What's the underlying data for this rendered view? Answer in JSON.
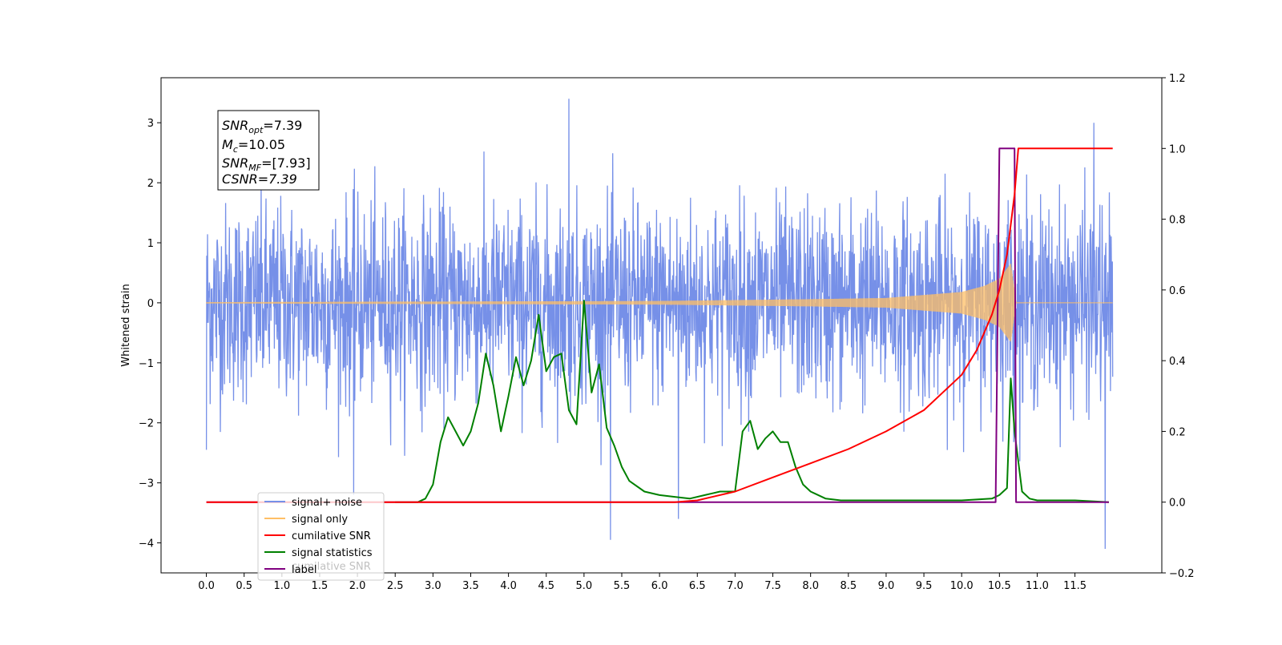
{
  "chart_data": {
    "type": "line",
    "title": "",
    "xlabel": "",
    "ylabel": "Whitened strain",
    "xlim": [
      -0.6,
      12.65
    ],
    "ylim": [
      -4.5,
      3.75
    ],
    "y2lim": [
      -0.2,
      1.2
    ],
    "x_ticks": [
      "0.0",
      "0.5",
      "1.0",
      "1.5",
      "2.0",
      "2.5",
      "3.0",
      "3.5",
      "4.0",
      "4.5",
      "5.0",
      "5.5",
      "6.0",
      "6.5",
      "7.0",
      "7.5",
      "8.0",
      "8.5",
      "9.0",
      "9.5",
      "10.0",
      "10.5",
      "11.0",
      "11.5"
    ],
    "y_ticks": [
      "3",
      "2",
      "1",
      "0",
      "−1",
      "−2",
      "−3",
      "−4"
    ],
    "y2_ticks": [
      "1.2",
      "1.0",
      "0.8",
      "0.6",
      "0.4",
      "0.2",
      "0.0",
      "−0.2"
    ],
    "grid": false,
    "legend_position": "lower-left",
    "annotation": {
      "snr_opt": "=7.39",
      "mc": "=10.05",
      "snr_mf": "=[7.93]",
      "csnr": "CSNR=7.39"
    },
    "legend_ghost": "cumilative SNR",
    "series": [
      {
        "name": "signal+ noise",
        "axis": "left",
        "color": "#7690e8",
        "description": "whitened noisy strain, amplitude about ±2 to ±3.4",
        "x_range": [
          0,
          12.0
        ],
        "outlier_peaks": [
          [
            0.0,
            1.95
          ],
          [
            0.0,
            -2.45
          ],
          [
            1.95,
            -3.2
          ],
          [
            4.8,
            3.4
          ],
          [
            5.35,
            -3.95
          ],
          [
            6.25,
            -3.6
          ],
          [
            11.9,
            -4.1
          ],
          [
            11.75,
            3.0
          ]
        ]
      },
      {
        "name": "signal only",
        "axis": "left",
        "color": "#ffbf66",
        "envelope": [
          [
            0.0,
            0.01
          ],
          [
            6.0,
            0.03
          ],
          [
            8.0,
            0.06
          ],
          [
            9.0,
            0.08
          ],
          [
            10.0,
            0.18
          ],
          [
            10.3,
            0.28
          ],
          [
            10.5,
            0.4
          ],
          [
            10.65,
            0.65
          ],
          [
            10.72,
            0.0
          ],
          [
            12.0,
            0.0
          ]
        ]
      },
      {
        "name": "cumilative SNR",
        "axis": "right",
        "color": "#ff0000",
        "x": [
          0.0,
          6.2,
          6.5,
          7.0,
          7.5,
          8.0,
          8.5,
          9.0,
          9.5,
          10.0,
          10.2,
          10.4,
          10.5,
          10.6,
          10.7,
          10.75,
          12.0
        ],
        "y": [
          0.0,
          0.0,
          0.005,
          0.03,
          0.07,
          0.11,
          0.15,
          0.2,
          0.26,
          0.36,
          0.43,
          0.53,
          0.6,
          0.7,
          0.87,
          1.0,
          1.0
        ]
      },
      {
        "name": "signal statistics",
        "axis": "right",
        "color": "#008000",
        "x": [
          2.5,
          2.8,
          2.9,
          3.0,
          3.1,
          3.2,
          3.3,
          3.4,
          3.5,
          3.6,
          3.7,
          3.8,
          3.9,
          4.0,
          4.1,
          4.2,
          4.3,
          4.4,
          4.5,
          4.6,
          4.7,
          4.8,
          4.9,
          5.0,
          5.1,
          5.2,
          5.3,
          5.4,
          5.5,
          5.6,
          5.8,
          6.0,
          6.2,
          6.4,
          6.6,
          6.8,
          7.0,
          7.1,
          7.2,
          7.3,
          7.4,
          7.5,
          7.6,
          7.7,
          7.8,
          7.9,
          8.0,
          8.2,
          8.4,
          9.0,
          10.0,
          10.4,
          10.5,
          10.6,
          10.65,
          10.7,
          10.8,
          10.9,
          11.0,
          11.5,
          11.95
        ],
        "y": [
          0.0,
          0.0,
          0.01,
          0.05,
          0.17,
          0.24,
          0.2,
          0.16,
          0.2,
          0.28,
          0.42,
          0.33,
          0.2,
          0.3,
          0.41,
          0.33,
          0.4,
          0.53,
          0.37,
          0.41,
          0.42,
          0.26,
          0.22,
          0.57,
          0.31,
          0.39,
          0.21,
          0.16,
          0.1,
          0.06,
          0.03,
          0.02,
          0.015,
          0.01,
          0.02,
          0.03,
          0.03,
          0.2,
          0.23,
          0.15,
          0.18,
          0.2,
          0.17,
          0.17,
          0.1,
          0.05,
          0.03,
          0.01,
          0.005,
          0.005,
          0.005,
          0.01,
          0.02,
          0.04,
          0.35,
          0.2,
          0.03,
          0.01,
          0.005,
          0.005,
          0.0
        ]
      },
      {
        "name": "label",
        "axis": "right",
        "color": "#800080",
        "x": [
          0.0,
          10.45,
          10.5,
          10.7,
          10.72,
          11.95
        ],
        "y": [
          0.0,
          0.0,
          1.0,
          1.0,
          0.0,
          0.0
        ]
      }
    ]
  }
}
